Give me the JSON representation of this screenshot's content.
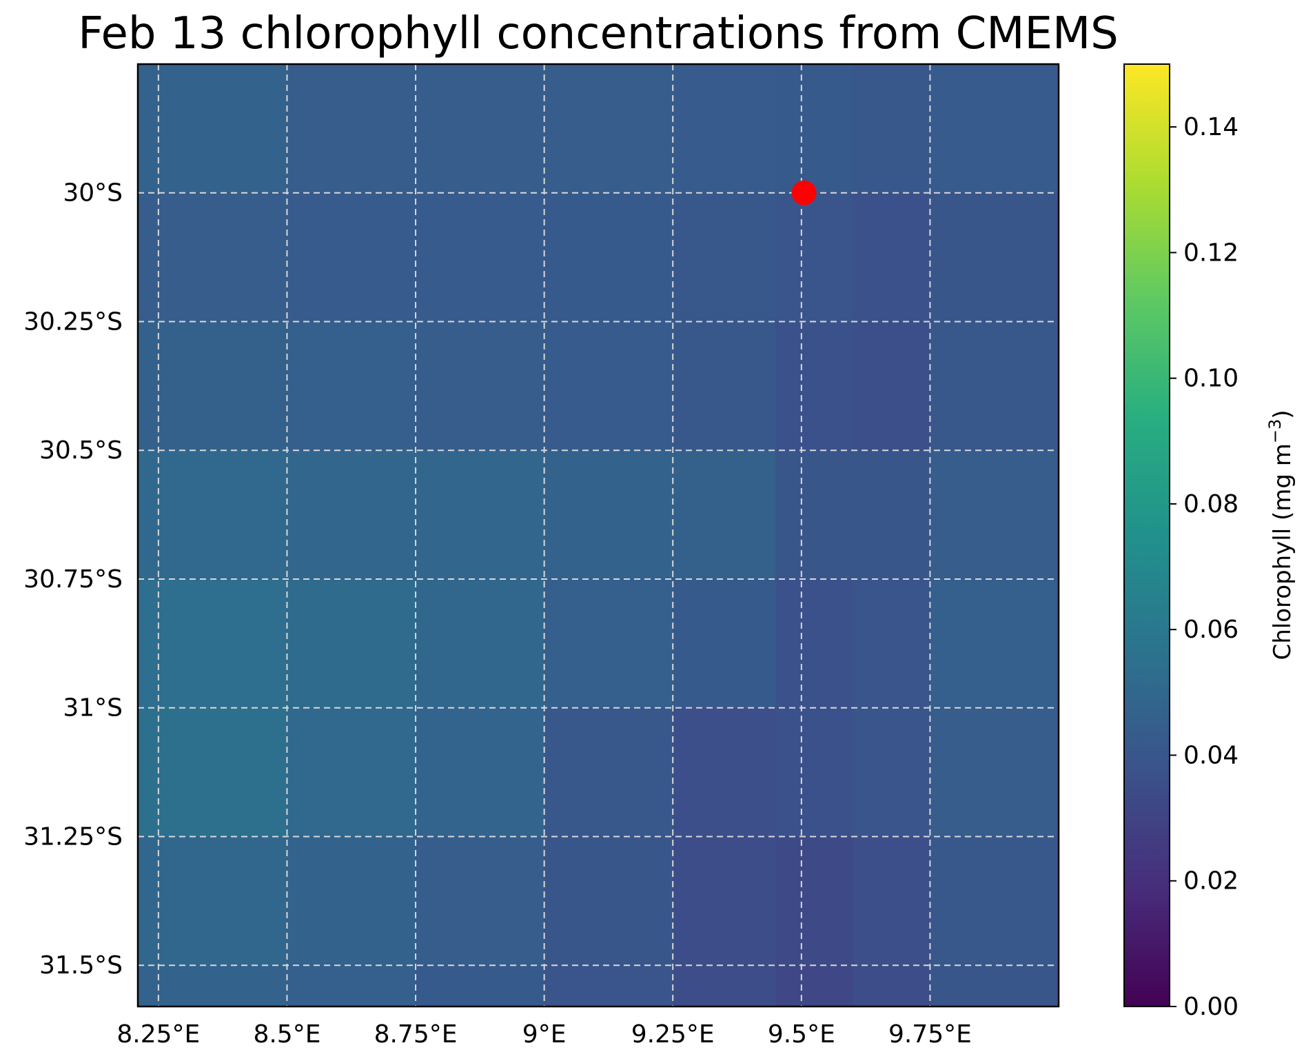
{
  "chart_data": {
    "type": "heatmap",
    "title": "Feb 13 chlorophyll concentrations from CMEMS",
    "colorbar_label": "Chlorophyll (mg m",
    "colorbar_label_exponent": "−3",
    "colorbar_label_close": ")",
    "colormap": "viridis",
    "vmin": 0.0,
    "vmax": 0.15,
    "colorbar_ticks": [
      "0.00",
      "0.02",
      "0.04",
      "0.06",
      "0.08",
      "0.10",
      "0.12",
      "0.14"
    ],
    "colorbar_tick_values": [
      0.0,
      0.02,
      0.04,
      0.06,
      0.08,
      0.1,
      0.12,
      0.14
    ],
    "lon_range": [
      8.21,
      10.0
    ],
    "lat_range": [
      -31.58,
      -29.75
    ],
    "x_ticks": [
      "8.25°E",
      "8.5°E",
      "8.75°E",
      "9°E",
      "9.25°E",
      "9.5°E",
      "9.75°E"
    ],
    "x_tick_values": [
      8.25,
      8.5,
      8.75,
      9.0,
      9.25,
      9.5,
      9.75
    ],
    "y_ticks": [
      "30°S",
      "30.25°S",
      "30.5°S",
      "30.75°S",
      "31°S",
      "31.25°S",
      "31.5°S"
    ],
    "y_tick_values": [
      -30.0,
      -30.25,
      -30.5,
      -30.75,
      -31.0,
      -31.25,
      -31.5
    ],
    "grid": true,
    "marker": {
      "lon": 9.505,
      "lat": -30.0,
      "color": "#ff0000"
    },
    "lon_edges": [
      8.21,
      8.5,
      8.75,
      9.0,
      9.25,
      9.45,
      9.6,
      9.75,
      10.0
    ],
    "lat_edges": [
      -29.75,
      -30.0,
      -30.25,
      -30.5,
      -30.75,
      -31.0,
      -31.25,
      -31.5,
      -31.58
    ],
    "values": [
      [
        0.047,
        0.044,
        0.044,
        0.044,
        0.043,
        0.042,
        0.041,
        0.043
      ],
      [
        0.044,
        0.043,
        0.043,
        0.042,
        0.041,
        0.039,
        0.037,
        0.04
      ],
      [
        0.046,
        0.045,
        0.044,
        0.043,
        0.041,
        0.037,
        0.036,
        0.041
      ],
      [
        0.051,
        0.049,
        0.049,
        0.047,
        0.046,
        0.04,
        0.04,
        0.044
      ],
      [
        0.054,
        0.052,
        0.05,
        0.045,
        0.042,
        0.037,
        0.039,
        0.045
      ],
      [
        0.055,
        0.051,
        0.048,
        0.041,
        0.036,
        0.037,
        0.039,
        0.044
      ],
      [
        0.05,
        0.047,
        0.044,
        0.04,
        0.035,
        0.033,
        0.036,
        0.041
      ],
      [
        0.047,
        0.045,
        0.042,
        0.039,
        0.035,
        0.032,
        0.035,
        0.04
      ]
    ]
  }
}
